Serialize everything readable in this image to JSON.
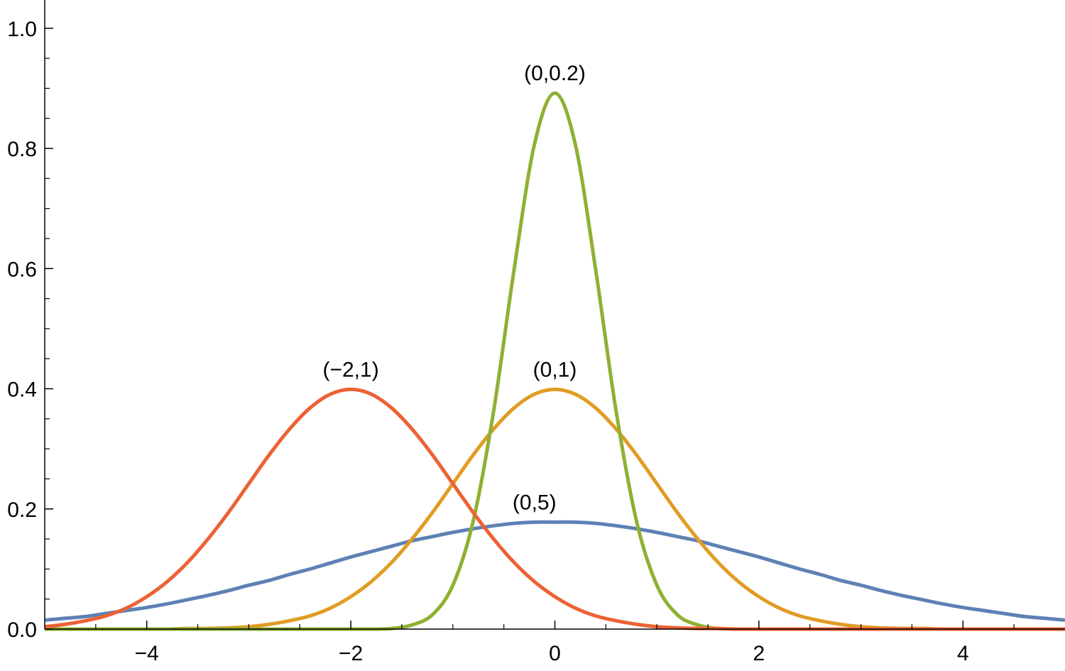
{
  "chart_data": {
    "type": "line",
    "x": [
      -5,
      -4.8,
      -4.6,
      -4.4,
      -4.2,
      -4,
      -3.8,
      -3.6,
      -3.4,
      -3.2,
      -3,
      -2.8,
      -2.6,
      -2.4,
      -2.2,
      -2,
      -1.8,
      -1.6,
      -1.4,
      -1.2,
      -1,
      -0.8,
      -0.6,
      -0.4,
      -0.2,
      0,
      0.2,
      0.4,
      0.6,
      0.8,
      1,
      1.2,
      1.4,
      1.6,
      1.8,
      2,
      2.2,
      2.4,
      2.6,
      2.8,
      3,
      3.2,
      3.4,
      3.6,
      3.8,
      4,
      4.2,
      4.4,
      4.6,
      4.8,
      5
    ],
    "series": [
      {
        "name": "(0,5)",
        "color": "#5e81b5",
        "values": [
          0.015,
          0.018,
          0.021,
          0.026,
          0.031,
          0.036,
          0.042,
          0.049,
          0.056,
          0.064,
          0.073,
          0.081,
          0.091,
          0.1,
          0.11,
          0.12,
          0.129,
          0.138,
          0.147,
          0.154,
          0.161,
          0.167,
          0.172,
          0.176,
          0.178,
          0.178,
          0.178,
          0.176,
          0.172,
          0.167,
          0.161,
          0.154,
          0.147,
          0.138,
          0.129,
          0.12,
          0.11,
          0.1,
          0.091,
          0.081,
          0.073,
          0.064,
          0.056,
          0.049,
          0.042,
          0.036,
          0.031,
          0.026,
          0.021,
          0.018,
          0.015
        ]
      },
      {
        "name": "(0,1)",
        "color": "#e19c24",
        "values": [
          0,
          0,
          0,
          0,
          0,
          0,
          0,
          0.001,
          0.001,
          0.002,
          0.004,
          0.008,
          0.014,
          0.022,
          0.035,
          0.054,
          0.079,
          0.111,
          0.15,
          0.194,
          0.242,
          0.29,
          0.333,
          0.368,
          0.391,
          0.399,
          0.391,
          0.368,
          0.333,
          0.29,
          0.242,
          0.194,
          0.15,
          0.111,
          0.079,
          0.054,
          0.035,
          0.022,
          0.014,
          0.008,
          0.004,
          0.002,
          0.001,
          0.001,
          0,
          0,
          0,
          0,
          0,
          0,
          0
        ]
      },
      {
        "name": "(0,0.2)",
        "color": "#8fb032",
        "values": [
          0,
          0,
          0,
          0,
          0,
          0,
          0,
          0,
          0,
          0,
          0,
          0,
          0,
          0,
          0,
          0,
          0,
          0.001,
          0.007,
          0.024,
          0.073,
          0.18,
          0.363,
          0.598,
          0.807,
          0.892,
          0.807,
          0.598,
          0.363,
          0.18,
          0.073,
          0.024,
          0.007,
          0.001,
          0,
          0,
          0,
          0,
          0,
          0,
          0,
          0,
          0,
          0,
          0,
          0,
          0,
          0,
          0,
          0,
          0
        ]
      },
      {
        "name": "(−2,1)",
        "color": "#eb6235",
        "values": [
          0.004,
          0.008,
          0.014,
          0.022,
          0.035,
          0.054,
          0.079,
          0.111,
          0.15,
          0.194,
          0.242,
          0.29,
          0.333,
          0.368,
          0.391,
          0.399,
          0.391,
          0.368,
          0.333,
          0.29,
          0.242,
          0.194,
          0.15,
          0.111,
          0.079,
          0.054,
          0.035,
          0.022,
          0.014,
          0.008,
          0.004,
          0.002,
          0.001,
          0.001,
          0,
          0,
          0,
          0,
          0,
          0,
          0,
          0,
          0,
          0,
          0,
          0,
          0,
          0,
          0,
          0,
          0
        ]
      }
    ],
    "xlim": [
      -5,
      5
    ],
    "ylim": [
      0,
      1.047
    ],
    "xticks": [
      {
        "value": -4,
        "label": "−4"
      },
      {
        "value": -2,
        "label": "−2"
      },
      0,
      2,
      4
    ],
    "yticks": [
      {
        "value": 0,
        "label": "0.0"
      },
      0.2,
      0.4,
      0.6,
      0.8,
      {
        "value": 1,
        "label": "1.0"
      }
    ],
    "xminorticks": [
      -4.5,
      -3.5,
      -3,
      -2.5,
      -1.5,
      -1,
      -0.5,
      0.5,
      1,
      1.5,
      2.5,
      3,
      3.5,
      4.5
    ],
    "yminorticks": [
      0.05,
      0.1,
      0.15,
      0.25,
      0.3,
      0.35,
      0.45,
      0.5,
      0.55,
      0.65,
      0.7,
      0.75,
      0.85,
      0.9,
      0.95
    ]
  }
}
